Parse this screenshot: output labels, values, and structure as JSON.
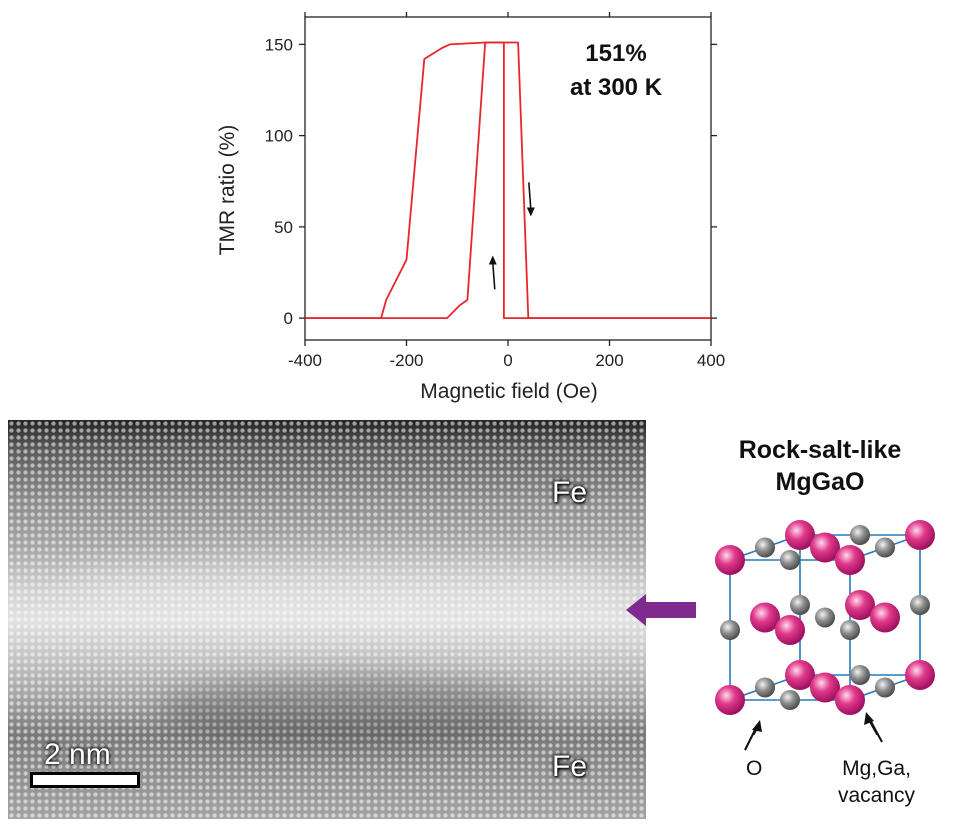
{
  "chart_data": {
    "type": "line",
    "xlabel": "Magnetic field (Oe)",
    "ylabel": "TMR ratio (%)",
    "xlim": [
      -400,
      400
    ],
    "ylim": [
      -12,
      165
    ],
    "x_ticks": [
      -400,
      -200,
      0,
      200,
      400
    ],
    "y_ticks": [
      0,
      50,
      100,
      150
    ],
    "annotation": [
      "151%",
      "at 300 K"
    ],
    "color": "#e8262c",
    "series": [
      {
        "x": [
          -400,
          -250,
          -240,
          -200,
          -165,
          -130,
          -115,
          -45,
          -40,
          -18,
          -8,
          -8,
          40,
          150,
          400
        ],
        "y": [
          0,
          0,
          10,
          32,
          142,
          148,
          150,
          151,
          151,
          151,
          151,
          0,
          0,
          0,
          0
        ]
      },
      {
        "x": [
          400,
          150,
          40,
          20,
          5,
          -45,
          -80,
          -95,
          -120,
          -400
        ],
        "y": [
          0,
          0,
          0,
          151,
          151,
          151,
          10,
          7,
          0,
          0
        ]
      }
    ],
    "arrows": [
      {
        "direction": "down",
        "x": 45,
        "y": 65
      },
      {
        "direction": "up",
        "x": -30,
        "y": 25
      }
    ]
  },
  "stem_image": {
    "top_label": "Fe",
    "bottom_label": "Fe",
    "scale_label": "2 nm"
  },
  "structure": {
    "title_line1": "Rock-salt-like",
    "title_line2": "MgGaO",
    "label_o": "O",
    "label_cation_line1": "Mg,Ga,",
    "label_cation_line2": "vacancy",
    "arrow_color": "#7e2a8f",
    "edge_color": "#2a7ab8",
    "o_color": "#e0398a",
    "cation_color": "#8e8e8e"
  }
}
